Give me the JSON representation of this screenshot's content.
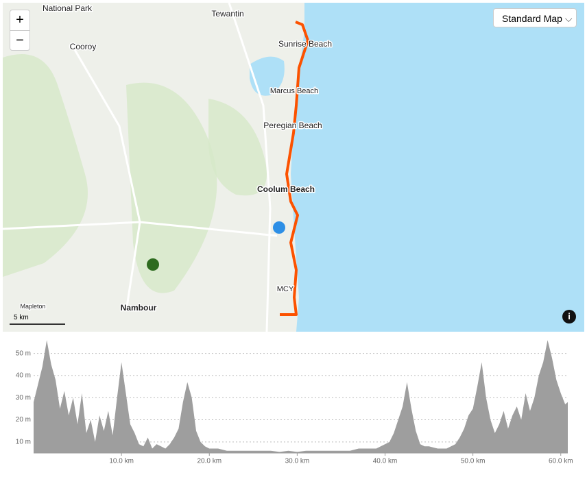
{
  "map": {
    "places": [
      "National Park",
      "Tewantin",
      "Cooroy",
      "Sunrise Beach",
      "Marcus Beach",
      "Peregian Beach",
      "Coolum Beach",
      "Nambour",
      "Mapleton",
      "MCY"
    ],
    "zoom_in": "+",
    "zoom_out": "−",
    "map_style": "Standard Map",
    "scale": "5 km"
  },
  "chart_data": {
    "type": "area",
    "color": "#9e9e9e",
    "x": [
      0,
      0.5,
      1,
      1.5,
      2,
      2.5,
      3,
      3.5,
      4,
      4.5,
      5,
      5.5,
      6,
      6.5,
      7,
      7.5,
      8,
      8.5,
      9,
      9.5,
      10,
      10.5,
      11,
      11.5,
      12,
      12.5,
      13,
      13.5,
      14,
      14.5,
      15,
      15.5,
      16,
      16.5,
      17,
      17.5,
      18,
      18.5,
      19,
      19.5,
      20,
      21,
      22,
      23,
      24,
      25,
      26,
      27,
      28,
      29,
      30,
      31,
      32,
      33,
      34,
      35,
      36,
      37,
      38,
      39,
      40,
      40.5,
      41,
      41.5,
      42,
      42.5,
      43,
      43.5,
      44,
      44.5,
      45,
      46,
      47,
      48,
      48.5,
      49,
      49.5,
      50,
      50.5,
      51,
      51.5,
      52,
      52.5,
      53,
      53.5,
      54,
      54.5,
      55,
      55.5,
      56,
      56.5,
      57,
      57.5,
      58,
      58.5,
      59,
      59.5,
      60,
      60.5,
      60.8
    ],
    "values": [
      28,
      36,
      44,
      56,
      45,
      38,
      25,
      33,
      22,
      30,
      18,
      32,
      14,
      20,
      10,
      22,
      15,
      24,
      13,
      30,
      46,
      32,
      18,
      14,
      9,
      8,
      12,
      7,
      9,
      8,
      7,
      9,
      12,
      16,
      28,
      37,
      30,
      15,
      10,
      8,
      7,
      7,
      6,
      6,
      6,
      6,
      6,
      6,
      5.5,
      6,
      5.5,
      6,
      6,
      6,
      6,
      6,
      6,
      7,
      7,
      7,
      9,
      10,
      14,
      20,
      26,
      37,
      25,
      15,
      9,
      8,
      8,
      7,
      7,
      9,
      12,
      16,
      22,
      25,
      35,
      46,
      30,
      20,
      14,
      18,
      24,
      16,
      22,
      26,
      20,
      32,
      24,
      30,
      40,
      46,
      56,
      48,
      38,
      32,
      27,
      28
    ],
    "xlim": [
      0,
      60.8
    ],
    "ylim": [
      5,
      57
    ],
    "xticks": [
      {
        "value": 10,
        "label": "10.0 km"
      },
      {
        "value": 20,
        "label": "20.0 km"
      },
      {
        "value": 30,
        "label": "30.0 km"
      },
      {
        "value": 40,
        "label": "40.0 km"
      },
      {
        "value": 50,
        "label": "50.0 km"
      },
      {
        "value": 60,
        "label": "60.0 km"
      }
    ],
    "yticks": [
      {
        "value": 10,
        "label": "10 m"
      },
      {
        "value": 20,
        "label": "20 m"
      },
      {
        "value": 30,
        "label": "30 m"
      },
      {
        "value": 40,
        "label": "40 m"
      },
      {
        "value": 50,
        "label": "50 m"
      }
    ],
    "grid": true
  }
}
